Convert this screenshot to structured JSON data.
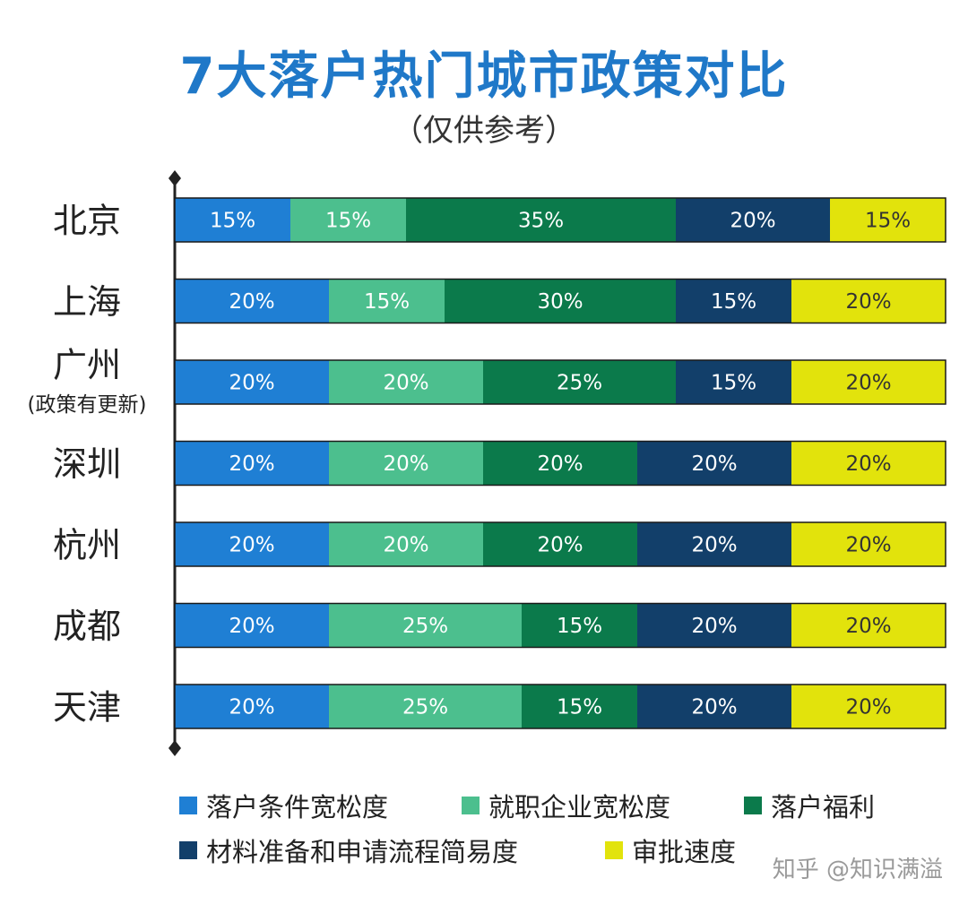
{
  "chart_data": {
    "type": "bar",
    "orientation": "horizontal",
    "stacked": true,
    "percent_stacked": true,
    "title": "7大落户热门城市政策对比",
    "subtitle": "（仅供参考）",
    "categories": [
      "北京",
      "上海",
      "广州",
      "深圳",
      "杭州",
      "成都",
      "天津"
    ],
    "category_notes": [
      "",
      "",
      "(政策有更新)",
      "",
      "",
      "",
      ""
    ],
    "xlim": [
      0,
      100
    ],
    "unit": "%",
    "grid": false,
    "legend_position": "bottom",
    "series": [
      {
        "name": "落户条件宽松度",
        "color": "#1f7fd4",
        "values": [
          15,
          20,
          20,
          20,
          20,
          20,
          20
        ]
      },
      {
        "name": "就职企业宽松度",
        "color": "#4cbf8e",
        "values": [
          15,
          15,
          20,
          20,
          20,
          25,
          25
        ]
      },
      {
        "name": "落户福利",
        "color": "#0b7a4b",
        "values": [
          35,
          30,
          25,
          20,
          20,
          15,
          15
        ]
      },
      {
        "name": "材料准备和申请流程简易度",
        "color": "#123f6a",
        "values": [
          20,
          15,
          15,
          20,
          20,
          20,
          20
        ]
      },
      {
        "name": "审批速度",
        "color": "#e2e30c",
        "values": [
          15,
          20,
          20,
          20,
          20,
          20,
          20
        ]
      }
    ]
  },
  "watermark": "知乎 @知识满溢"
}
